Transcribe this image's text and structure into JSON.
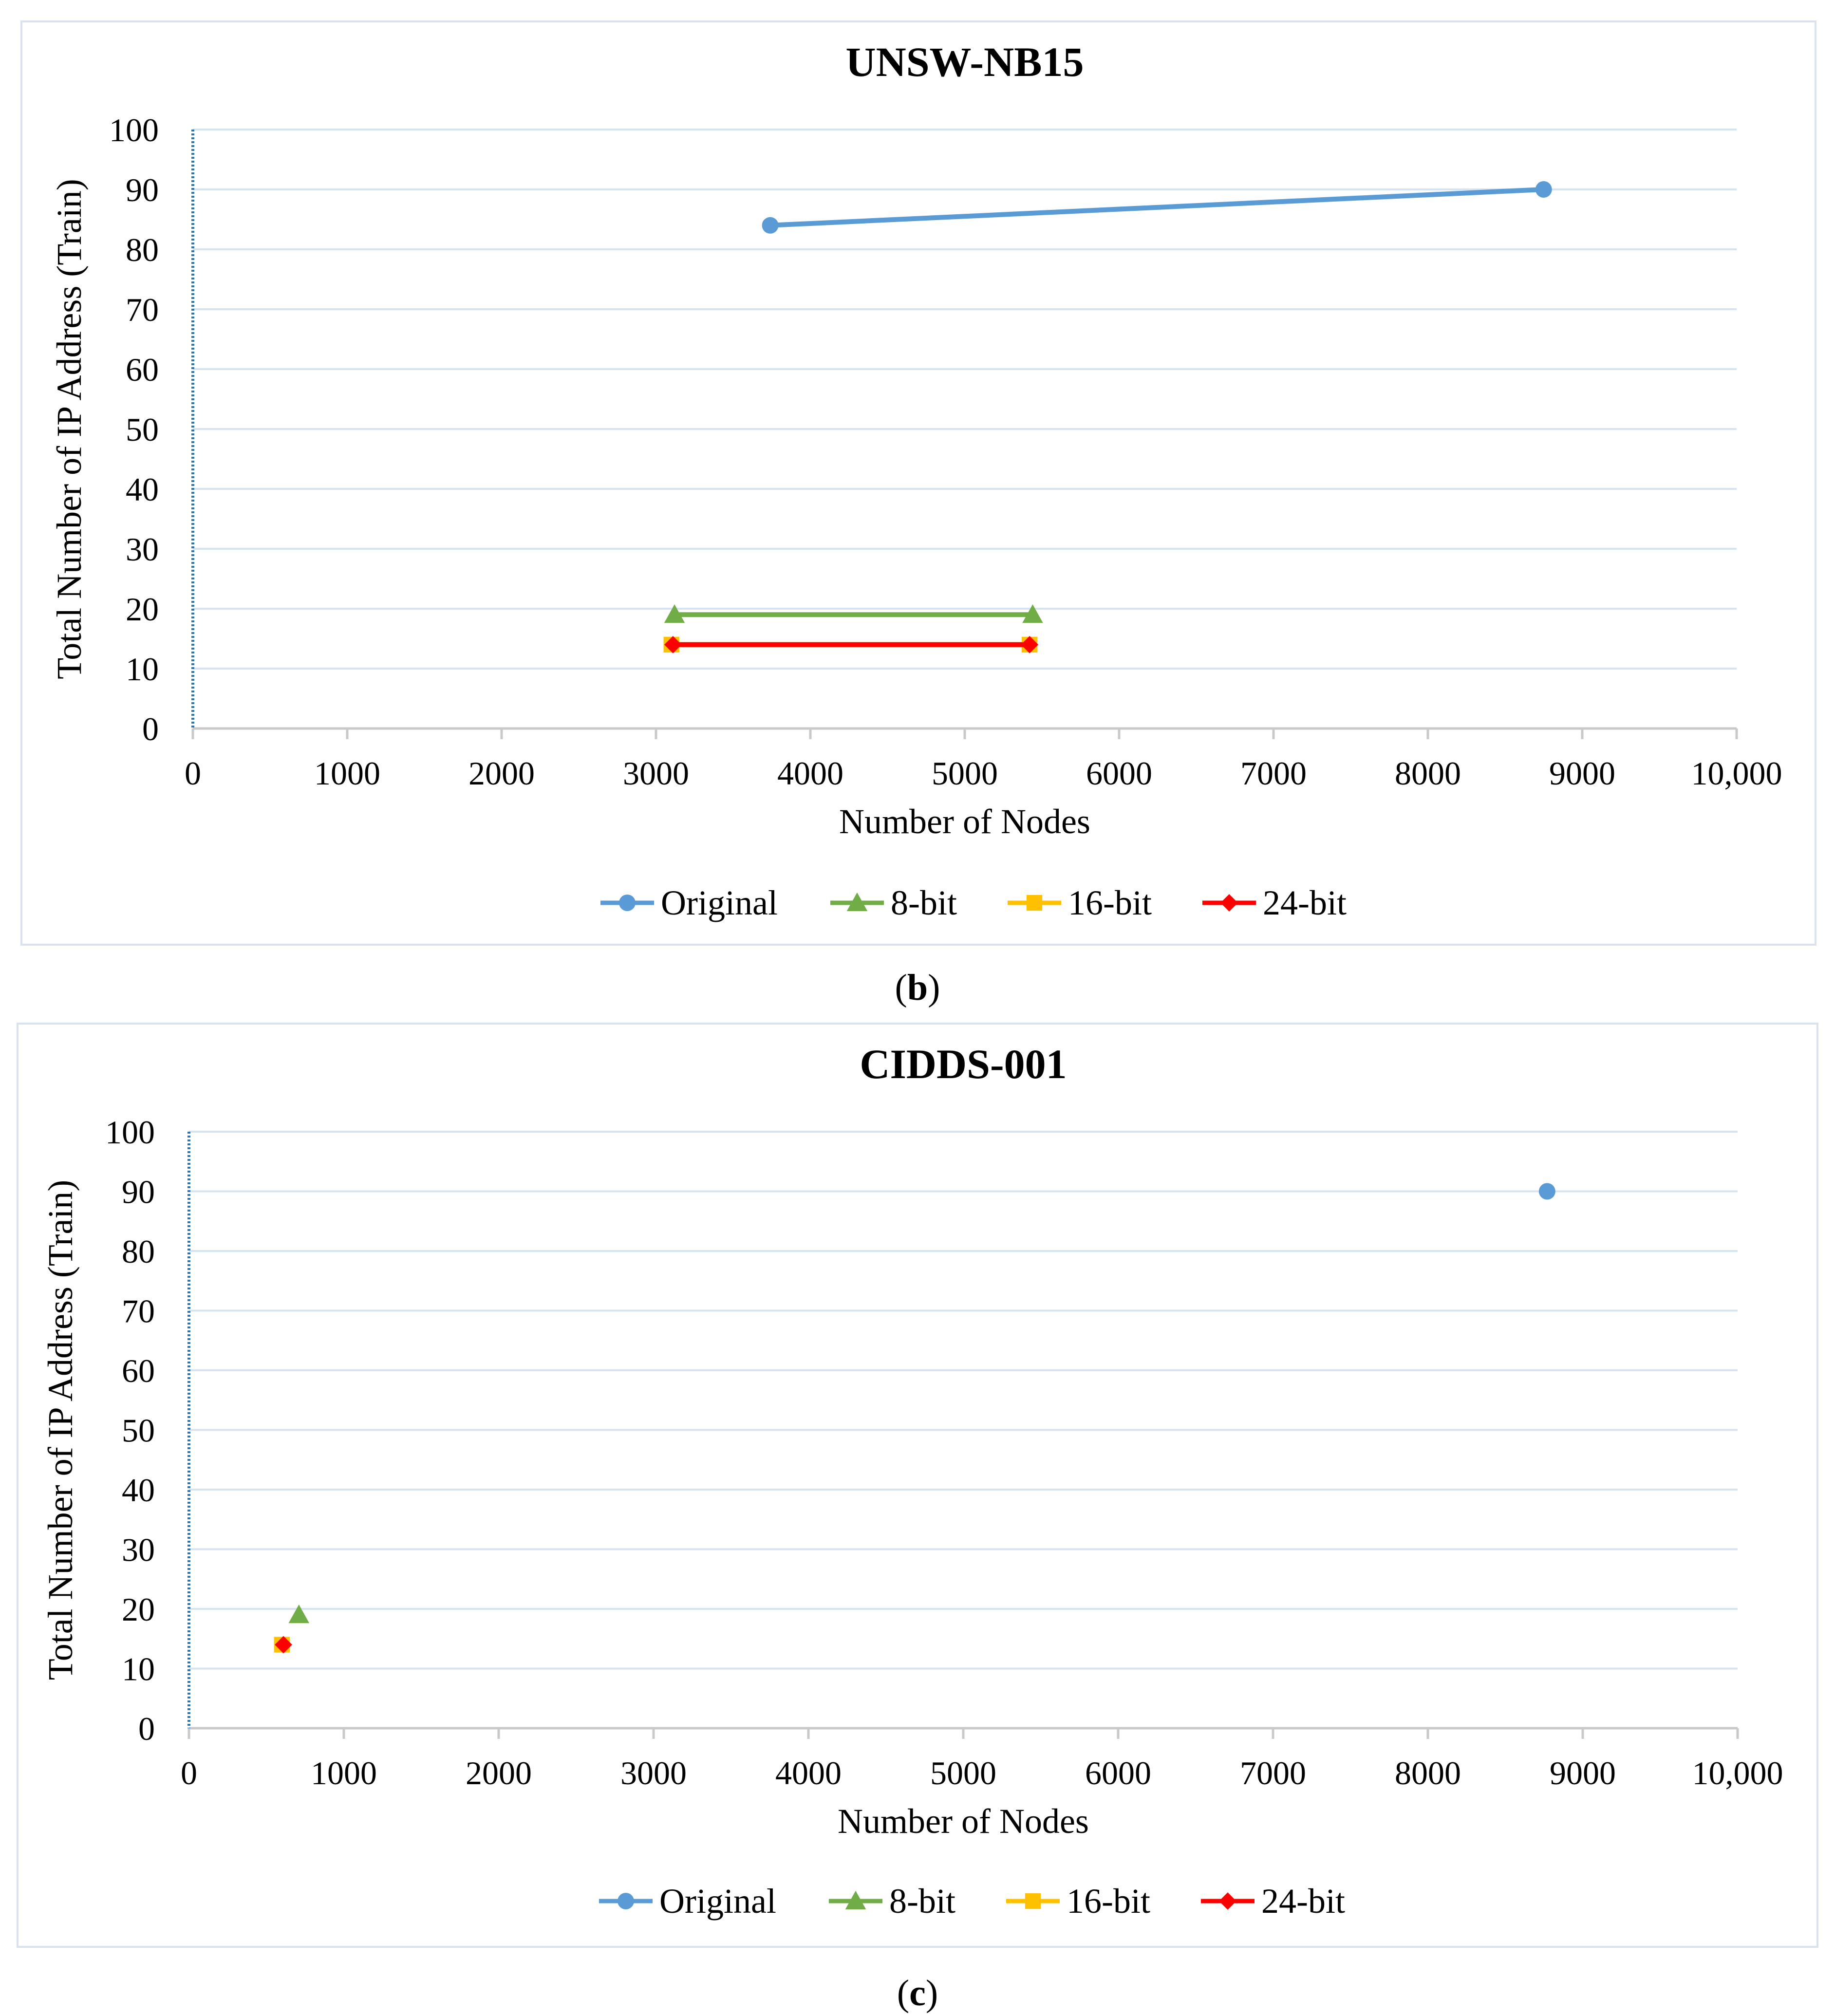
{
  "chart_data": [
    {
      "type": "line",
      "title": "UNSW-NB15",
      "xlabel": "Number of Nodes",
      "ylabel": "Total Number of IP Address (Train)",
      "xlim": [
        0,
        10000
      ],
      "ylim": [
        0,
        100
      ],
      "x_ticks": [
        "0",
        "1000",
        "2000",
        "3000",
        "4000",
        "5000",
        "6000",
        "7000",
        "8000",
        "9000",
        "10,000"
      ],
      "y_ticks": [
        "0",
        "10",
        "20",
        "30",
        "40",
        "50",
        "60",
        "70",
        "80",
        "90",
        "100"
      ],
      "grid": true,
      "legend_position": "bottom",
      "series": [
        {
          "name": "Original",
          "marker": "circle",
          "color": "#5b9bd5",
          "points": [
            [
              3740,
              84
            ],
            [
              8750,
              90
            ]
          ]
        },
        {
          "name": "8-bit",
          "marker": "triangle",
          "color": "#70ad47",
          "points": [
            [
              3120,
              19
            ],
            [
              5440,
              19
            ]
          ]
        },
        {
          "name": "16-bit",
          "marker": "square",
          "color": "#ffc000",
          "points": [
            [
              3100,
              14
            ],
            [
              5420,
              14
            ]
          ]
        },
        {
          "name": "24-bit",
          "marker": "diamond",
          "color": "#ff0000",
          "points": [
            [
              3110,
              14
            ],
            [
              5420,
              14
            ]
          ]
        }
      ],
      "caption": "b"
    },
    {
      "type": "scatter",
      "title": "CIDDS-001",
      "xlabel": "Number of Nodes",
      "ylabel": "Total Number of IP Address (Train)",
      "xlim": [
        0,
        10000
      ],
      "ylim": [
        0,
        100
      ],
      "x_ticks": [
        "0",
        "1000",
        "2000",
        "3000",
        "4000",
        "5000",
        "6000",
        "7000",
        "8000",
        "9000",
        "10,000"
      ],
      "y_ticks": [
        "0",
        "10",
        "20",
        "30",
        "40",
        "50",
        "60",
        "70",
        "80",
        "90",
        "100"
      ],
      "grid": true,
      "legend_position": "bottom",
      "series": [
        {
          "name": "Original",
          "marker": "circle",
          "color": "#5b9bd5",
          "points": [
            [
              8770,
              90
            ]
          ]
        },
        {
          "name": "8-bit",
          "marker": "triangle",
          "color": "#70ad47",
          "points": [
            [
              710,
              19
            ]
          ]
        },
        {
          "name": "16-bit",
          "marker": "square",
          "color": "#ffc000",
          "points": [
            [
              600,
              14
            ]
          ]
        },
        {
          "name": "24-bit",
          "marker": "diamond",
          "color": "#ff0000",
          "points": [
            [
              610,
              14
            ]
          ]
        }
      ],
      "caption": "c"
    }
  ]
}
